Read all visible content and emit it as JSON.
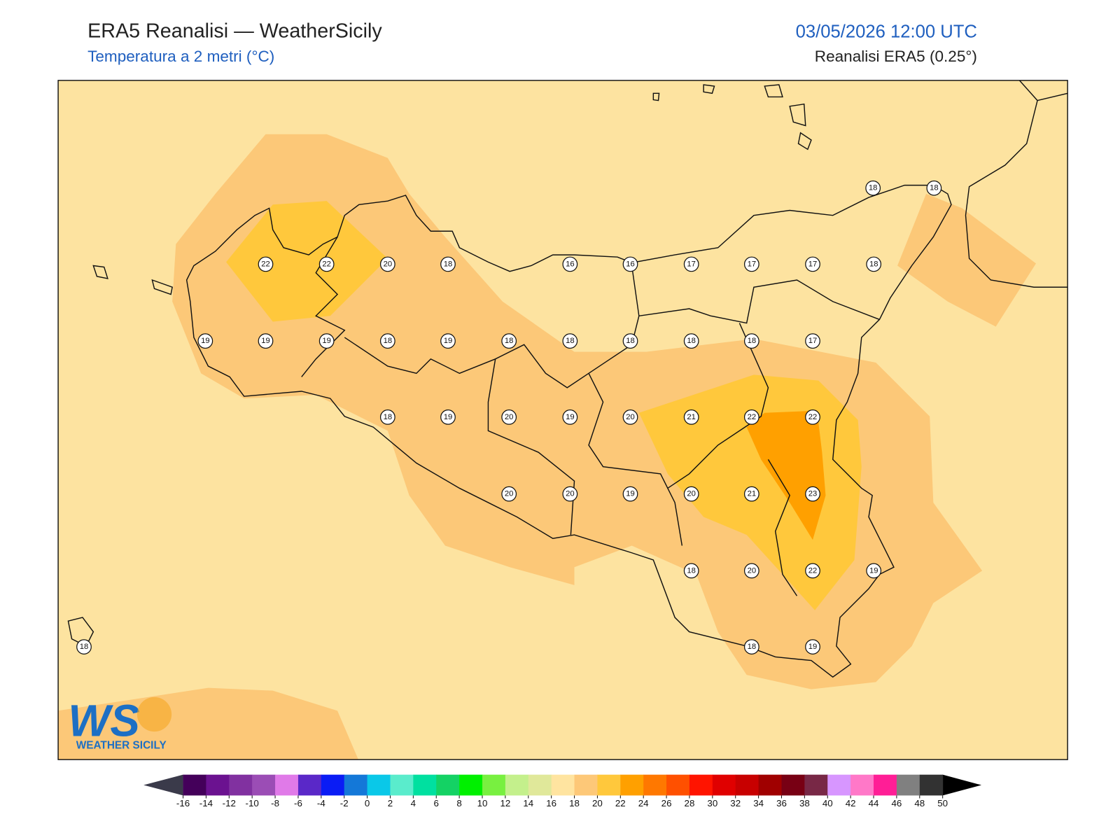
{
  "header": {
    "title": "ERA5 Reanalisi — WeatherSicily",
    "subtitle": "Temperatura a 2 metri (°C)",
    "datetime": "03/05/2026 12:00 UTC",
    "source": "Reanalisi ERA5 (0.25°)"
  },
  "map": {
    "background": "#fde3a0",
    "stations": {
      "values": [
        22,
        22,
        20,
        18,
        16,
        16,
        17,
        17,
        17,
        18,
        18,
        18,
        19,
        19,
        19,
        18,
        19,
        18,
        18,
        18,
        18,
        18,
        17,
        18,
        19,
        20,
        19,
        20,
        21,
        22,
        22,
        20,
        20,
        19,
        20,
        21,
        23,
        18,
        20,
        22,
        19,
        18,
        18,
        19
      ]
    }
  },
  "logo": {
    "initials": "WS",
    "text": "WEATHER SICILY"
  },
  "colorbar": {
    "ticks": [
      -16,
      -14,
      -12,
      -10,
      -8,
      -6,
      -4,
      -2,
      0,
      2,
      4,
      6,
      8,
      10,
      12,
      14,
      16,
      18,
      20,
      22,
      24,
      26,
      28,
      30,
      32,
      34,
      36,
      38,
      40,
      42,
      44,
      46,
      48,
      50
    ],
    "colors": [
      "#44005a",
      "#6b1290",
      "#8131a0",
      "#9b4db5",
      "#e07ae8",
      "#5a28c8",
      "#0a1cf5",
      "#1478d8",
      "#0ac8e8",
      "#5aeccc",
      "#00e0a0",
      "#14d264",
      "#00f000",
      "#78f040",
      "#c4f08c",
      "#e0e89a",
      "#ffe4a0",
      "#fdc878",
      "#ffc83c",
      "#ffa000",
      "#ff7800",
      "#ff5000",
      "#ff1400",
      "#e00000",
      "#c80000",
      "#a00000",
      "#780014",
      "#782846",
      "#d796ff",
      "#ff78c8",
      "#ff1e96",
      "#808080",
      "#323232"
    ],
    "under_color": "#3a3a4a",
    "over_color": "#000000"
  }
}
